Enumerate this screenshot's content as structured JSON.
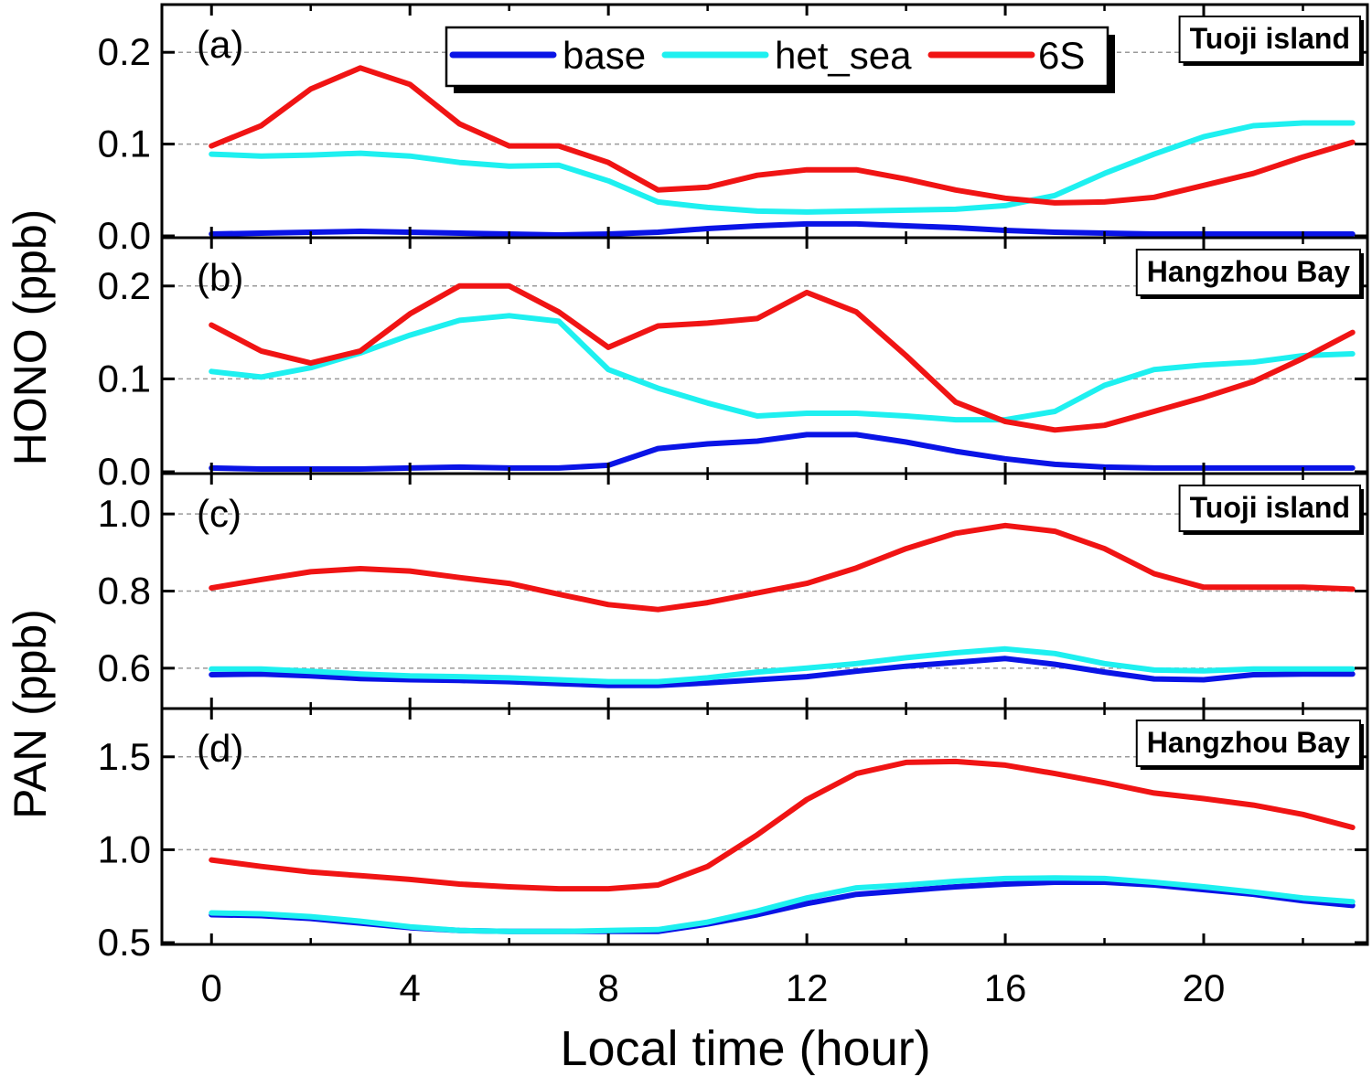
{
  "colors": {
    "base": "#0a14e6",
    "het_sea": "#1ef0f0",
    "6S": "#f01414",
    "grid": "#9a9a9a"
  },
  "chart_data": {
    "type": "line",
    "xlabel": "Local time (hour)",
    "xlim": [
      -1,
      23.3
    ],
    "xticks": [
      0,
      4,
      8,
      12,
      16,
      20
    ],
    "hours": [
      0,
      1,
      2,
      3,
      4,
      5,
      6,
      7,
      8,
      9,
      10,
      11,
      12,
      13,
      14,
      15,
      16,
      17,
      18,
      19,
      20,
      21,
      22,
      23
    ],
    "legend": {
      "position": "top-center",
      "entries": [
        {
          "series": "base",
          "label": "base"
        },
        {
          "series": "het_sea",
          "label": "het_sea"
        },
        {
          "series": "6S",
          "label": "6S"
        }
      ]
    },
    "shared_ylabels": [
      {
        "text": "HONO (ppb)",
        "panels": [
          "a",
          "b"
        ]
      },
      {
        "text": "PAN (ppb)",
        "panels": [
          "c",
          "d"
        ]
      }
    ],
    "panels": [
      {
        "id": "a",
        "panel_label": "(a)",
        "site": "Tuoji island",
        "ylim": [
          0,
          0.25
        ],
        "yticks": [
          0.0,
          0.1,
          0.2
        ],
        "ytick_labels": [
          "0.0",
          "0.1",
          "0.2"
        ],
        "grid": [
          0.1,
          0.2
        ],
        "series": [
          {
            "key": "base",
            "values": [
              0.002,
              0.003,
              0.004,
              0.005,
              0.004,
              0.003,
              0.002,
              0.001,
              0.002,
              0.004,
              0.008,
              0.011,
              0.013,
              0.013,
              0.011,
              0.009,
              0.006,
              0.004,
              0.003,
              0.002,
              0.002,
              0.002,
              0.002,
              0.002
            ]
          },
          {
            "key": "het_sea",
            "values": [
              0.089,
              0.087,
              0.088,
              0.09,
              0.087,
              0.08,
              0.076,
              0.077,
              0.06,
              0.037,
              0.031,
              0.027,
              0.026,
              0.027,
              0.028,
              0.029,
              0.033,
              0.044,
              0.068,
              0.089,
              0.108,
              0.12,
              0.123,
              0.123
            ]
          },
          {
            "key": "6S",
            "values": [
              0.098,
              0.12,
              0.16,
              0.183,
              0.165,
              0.122,
              0.098,
              0.098,
              0.08,
              0.05,
              0.053,
              0.066,
              0.072,
              0.072,
              0.062,
              0.05,
              0.041,
              0.036,
              0.037,
              0.042,
              0.055,
              0.068,
              0.086,
              0.102
            ]
          }
        ]
      },
      {
        "id": "b",
        "panel_label": "(b)",
        "site": "Hangzhou Bay",
        "ylim": [
          0,
          0.25
        ],
        "yticks": [
          0.0,
          0.1,
          0.2
        ],
        "ytick_labels": [
          "0.0",
          "0.1",
          "0.2"
        ],
        "grid": [
          0.1,
          0.2
        ],
        "series": [
          {
            "key": "base",
            "values": [
              0.004,
              0.003,
              0.003,
              0.003,
              0.004,
              0.005,
              0.004,
              0.004,
              0.007,
              0.025,
              0.03,
              0.033,
              0.04,
              0.04,
              0.032,
              0.022,
              0.014,
              0.008,
              0.005,
              0.004,
              0.004,
              0.004,
              0.004,
              0.004
            ]
          },
          {
            "key": "het_sea",
            "values": [
              0.108,
              0.102,
              0.112,
              0.128,
              0.147,
              0.163,
              0.168,
              0.162,
              0.11,
              0.09,
              0.074,
              0.06,
              0.063,
              0.063,
              0.06,
              0.056,
              0.056,
              0.065,
              0.093,
              0.11,
              0.115,
              0.118,
              0.125,
              0.127
            ]
          },
          {
            "key": "6S",
            "values": [
              0.158,
              0.13,
              0.117,
              0.13,
              0.17,
              0.2,
              0.2,
              0.172,
              0.134,
              0.157,
              0.16,
              0.165,
              0.193,
              0.172,
              0.125,
              0.075,
              0.054,
              0.045,
              0.05,
              0.065,
              0.08,
              0.097,
              0.122,
              0.15
            ]
          }
        ]
      },
      {
        "id": "c",
        "panel_label": "(c)",
        "site": "Tuoji island",
        "ylim": [
          0.5,
          1.1
        ],
        "yticks": [
          0.6,
          0.8,
          1.0
        ],
        "ytick_labels": [
          "0.6",
          "0.8",
          "1.0"
        ],
        "grid": [
          0.6,
          0.8,
          1.0
        ],
        "series": [
          {
            "key": "base",
            "values": [
              0.583,
              0.585,
              0.58,
              0.573,
              0.57,
              0.568,
              0.565,
              0.56,
              0.555,
              0.555,
              0.562,
              0.57,
              0.578,
              0.592,
              0.605,
              0.615,
              0.625,
              0.61,
              0.59,
              0.572,
              0.57,
              0.583,
              0.585,
              0.585
            ]
          },
          {
            "key": "het_sea",
            "values": [
              0.598,
              0.598,
              0.592,
              0.585,
              0.58,
              0.578,
              0.575,
              0.57,
              0.565,
              0.565,
              0.575,
              0.59,
              0.6,
              0.612,
              0.627,
              0.64,
              0.65,
              0.638,
              0.612,
              0.595,
              0.593,
              0.598,
              0.598,
              0.598
            ]
          },
          {
            "key": "6S",
            "values": [
              0.808,
              0.83,
              0.85,
              0.858,
              0.852,
              0.835,
              0.82,
              0.792,
              0.765,
              0.752,
              0.77,
              0.795,
              0.82,
              0.86,
              0.91,
              0.95,
              0.97,
              0.955,
              0.91,
              0.845,
              0.81,
              0.81,
              0.81,
              0.805
            ]
          }
        ]
      },
      {
        "id": "d",
        "panel_label": "(d)",
        "site": "Hangzhou Bay",
        "ylim": [
          0.5,
          1.75
        ],
        "yticks": [
          0.5,
          1.0,
          1.5
        ],
        "ytick_labels": [
          "0.5",
          "1.0",
          "1.5"
        ],
        "grid": [
          1.0,
          1.5
        ],
        "series": [
          {
            "key": "base",
            "values": [
              0.65,
              0.645,
              0.63,
              0.605,
              0.58,
              0.565,
              0.56,
              0.56,
              0.56,
              0.56,
              0.6,
              0.65,
              0.71,
              0.76,
              0.78,
              0.8,
              0.815,
              0.825,
              0.825,
              0.81,
              0.785,
              0.76,
              0.725,
              0.7
            ]
          },
          {
            "key": "het_sea",
            "values": [
              0.66,
              0.655,
              0.64,
              0.615,
              0.585,
              0.565,
              0.56,
              0.56,
              0.565,
              0.57,
              0.61,
              0.67,
              0.74,
              0.795,
              0.81,
              0.83,
              0.845,
              0.848,
              0.845,
              0.825,
              0.8,
              0.772,
              0.74,
              0.72
            ]
          },
          {
            "key": "6S",
            "values": [
              0.945,
              0.91,
              0.88,
              0.86,
              0.84,
              0.815,
              0.8,
              0.79,
              0.79,
              0.81,
              0.91,
              1.08,
              1.27,
              1.41,
              1.47,
              1.475,
              1.455,
              1.41,
              1.36,
              1.305,
              1.275,
              1.24,
              1.19,
              1.12
            ]
          }
        ]
      }
    ]
  }
}
